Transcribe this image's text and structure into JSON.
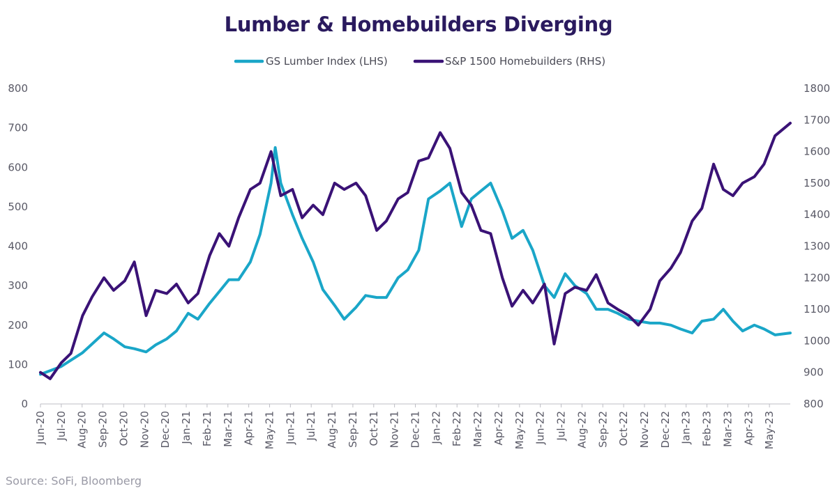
{
  "chart_data": {
    "type": "line",
    "title": "Lumber & Homebuilders Diverging",
    "source": "Source: SoFi, Bloomberg",
    "legend_position": "top-center",
    "grid": false,
    "x_tick_labels": [
      "Jun-20",
      "Jul-20",
      "Aug-20",
      "Sep-20",
      "Oct-20",
      "Nov-20",
      "Dec-20",
      "Jan-21",
      "Feb-21",
      "Mar-21",
      "Apr-21",
      "May-21",
      "Jun-21",
      "Jul-21",
      "Aug-21",
      "Sep-21",
      "Oct-21",
      "Nov-21",
      "Dec-21",
      "Jan-22",
      "Feb-22",
      "Mar-22",
      "Apr-22",
      "May-22",
      "Jun-22",
      "Jul-22",
      "Aug-22",
      "Sep-22",
      "Oct-22",
      "Nov-22",
      "Dec-22",
      "Jan-23",
      "Feb-23",
      "Mar-23",
      "Apr-23",
      "May-23"
    ],
    "xlim": [
      "2020-06-01",
      "2023-05-23"
    ],
    "y_left": {
      "ylim": [
        0,
        800
      ],
      "ticks": [
        0,
        100,
        200,
        300,
        400,
        500,
        600,
        700,
        800
      ]
    },
    "y_right": {
      "ylim": [
        800,
        1800
      ],
      "ticks": [
        800,
        900,
        1000,
        1100,
        1200,
        1300,
        1400,
        1500,
        1600,
        1700,
        1800
      ]
    },
    "series": [
      {
        "name": "GS Lumber Index (LHS)",
        "axis": "left",
        "color": "#1aa6c8",
        "x": [
          "2020-06-01",
          "2020-07-01",
          "2020-08-01",
          "2020-09-01",
          "2020-09-15",
          "2020-10-01",
          "2020-10-15",
          "2020-11-01",
          "2020-11-15",
          "2020-12-01",
          "2020-12-15",
          "2021-01-01",
          "2021-01-15",
          "2021-02-01",
          "2021-02-15",
          "2021-03-01",
          "2021-03-15",
          "2021-04-01",
          "2021-04-15",
          "2021-05-01",
          "2021-05-07",
          "2021-05-15",
          "2021-06-01",
          "2021-06-15",
          "2021-07-01",
          "2021-07-15",
          "2021-08-01",
          "2021-08-15",
          "2021-09-01",
          "2021-09-15",
          "2021-10-01",
          "2021-10-15",
          "2021-11-01",
          "2021-11-15",
          "2021-12-01",
          "2021-12-15",
          "2022-01-01",
          "2022-01-15",
          "2022-02-01",
          "2022-02-15",
          "2022-03-01",
          "2022-03-15",
          "2022-04-01",
          "2022-04-15",
          "2022-05-01",
          "2022-05-15",
          "2022-06-01",
          "2022-06-15",
          "2022-07-01",
          "2022-07-15",
          "2022-08-01",
          "2022-08-15",
          "2022-09-01",
          "2022-09-15",
          "2022-10-01",
          "2022-10-15",
          "2022-11-01",
          "2022-11-15",
          "2022-12-01",
          "2022-12-15",
          "2023-01-01",
          "2023-01-15",
          "2023-02-01",
          "2023-02-15",
          "2023-03-01",
          "2023-03-15",
          "2023-04-01",
          "2023-04-15",
          "2023-05-01",
          "2023-05-23"
        ],
        "values": [
          75,
          95,
          130,
          180,
          165,
          145,
          140,
          132,
          150,
          165,
          185,
          230,
          215,
          255,
          285,
          315,
          315,
          360,
          430,
          560,
          650,
          560,
          480,
          420,
          360,
          290,
          250,
          215,
          245,
          275,
          270,
          270,
          320,
          340,
          390,
          520,
          540,
          560,
          450,
          520,
          540,
          560,
          490,
          420,
          440,
          390,
          300,
          270,
          330,
          300,
          280,
          240,
          240,
          230,
          215,
          210,
          205,
          205,
          200,
          190,
          180,
          210,
          215,
          240,
          210,
          185,
          200,
          190,
          175,
          180
        ]
      },
      {
        "name": "S&P 1500 Homebuilders (RHS)",
        "axis": "right",
        "color": "#3a1276",
        "x": [
          "2020-06-01",
          "2020-06-15",
          "2020-07-01",
          "2020-07-15",
          "2020-08-01",
          "2020-08-15",
          "2020-09-01",
          "2020-09-15",
          "2020-10-01",
          "2020-10-15",
          "2020-11-01",
          "2020-11-15",
          "2020-12-01",
          "2020-12-15",
          "2021-01-01",
          "2021-01-15",
          "2021-02-01",
          "2021-02-15",
          "2021-03-01",
          "2021-03-15",
          "2021-04-01",
          "2021-04-15",
          "2021-05-01",
          "2021-05-15",
          "2021-06-01",
          "2021-06-15",
          "2021-07-01",
          "2021-07-15",
          "2021-08-01",
          "2021-08-15",
          "2021-09-01",
          "2021-09-15",
          "2021-10-01",
          "2021-10-15",
          "2021-11-01",
          "2021-11-15",
          "2021-12-01",
          "2021-12-15",
          "2022-01-01",
          "2022-01-15",
          "2022-02-01",
          "2022-02-15",
          "2022-03-01",
          "2022-03-15",
          "2022-04-01",
          "2022-04-15",
          "2022-05-01",
          "2022-05-15",
          "2022-06-01",
          "2022-06-15",
          "2022-07-01",
          "2022-07-15",
          "2022-08-01",
          "2022-08-15",
          "2022-09-01",
          "2022-09-15",
          "2022-10-01",
          "2022-10-15",
          "2022-11-01",
          "2022-11-15",
          "2022-12-01",
          "2022-12-15",
          "2023-01-01",
          "2023-01-15",
          "2023-02-01",
          "2023-02-15",
          "2023-03-01",
          "2023-03-15",
          "2023-04-01",
          "2023-04-15",
          "2023-05-01",
          "2023-05-23"
        ],
        "values": [
          900,
          880,
          930,
          960,
          1080,
          1140,
          1200,
          1160,
          1190,
          1250,
          1080,
          1160,
          1150,
          1180,
          1120,
          1150,
          1270,
          1340,
          1300,
          1390,
          1480,
          1500,
          1600,
          1460,
          1480,
          1390,
          1430,
          1400,
          1500,
          1480,
          1500,
          1460,
          1350,
          1380,
          1450,
          1470,
          1570,
          1580,
          1660,
          1610,
          1470,
          1430,
          1350,
          1340,
          1200,
          1110,
          1160,
          1120,
          1180,
          990,
          1150,
          1170,
          1160,
          1210,
          1120,
          1100,
          1080,
          1050,
          1100,
          1190,
          1230,
          1280,
          1380,
          1420,
          1560,
          1480,
          1460,
          1500,
          1520,
          1560,
          1650,
          1690
        ]
      }
    ]
  }
}
